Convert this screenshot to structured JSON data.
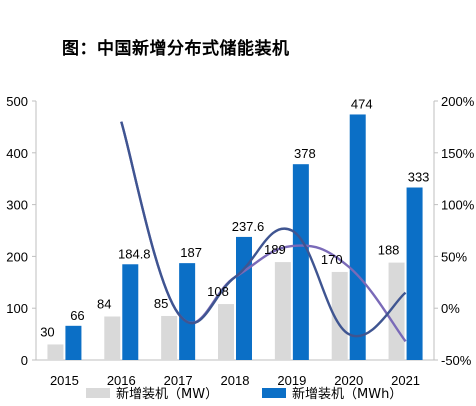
{
  "chart_data": {
    "type": "bar",
    "title": "图：中国新增分布式储能装机",
    "categories": [
      "2015",
      "2016",
      "2017",
      "2018",
      "2019",
      "2020",
      "2021"
    ],
    "series": [
      {
        "name": "新增装机（MW）",
        "type": "bar",
        "color": "#d9d9d9",
        "values": [
          30,
          84,
          85,
          108,
          189,
          170,
          188
        ]
      },
      {
        "name": "新增装机（MWh）",
        "type": "bar",
        "color": "#0b6fc6",
        "values": [
          66,
          184.8,
          187,
          237.6,
          378,
          474,
          333
        ]
      },
      {
        "name": "",
        "type": "line",
        "axis": "right",
        "color": "#7a6ab8",
        "values": [
          null,
          180,
          -5,
          30,
          60,
          40,
          -32
        ]
      },
      {
        "name": "",
        "type": "line",
        "axis": "right",
        "color": "#3f5591",
        "values": [
          null,
          180,
          -5,
          30,
          75,
          -25,
          15
        ]
      }
    ],
    "y_left": {
      "min": 0,
      "max": 500,
      "ticks": [
        "0",
        "100",
        "200",
        "300",
        "400",
        "500"
      ]
    },
    "y_right": {
      "min": -50,
      "max": 200,
      "ticks": [
        "-50%",
        "0%",
        "50%",
        "100%",
        "150%",
        "200%"
      ]
    },
    "legend_position": "bottom"
  }
}
